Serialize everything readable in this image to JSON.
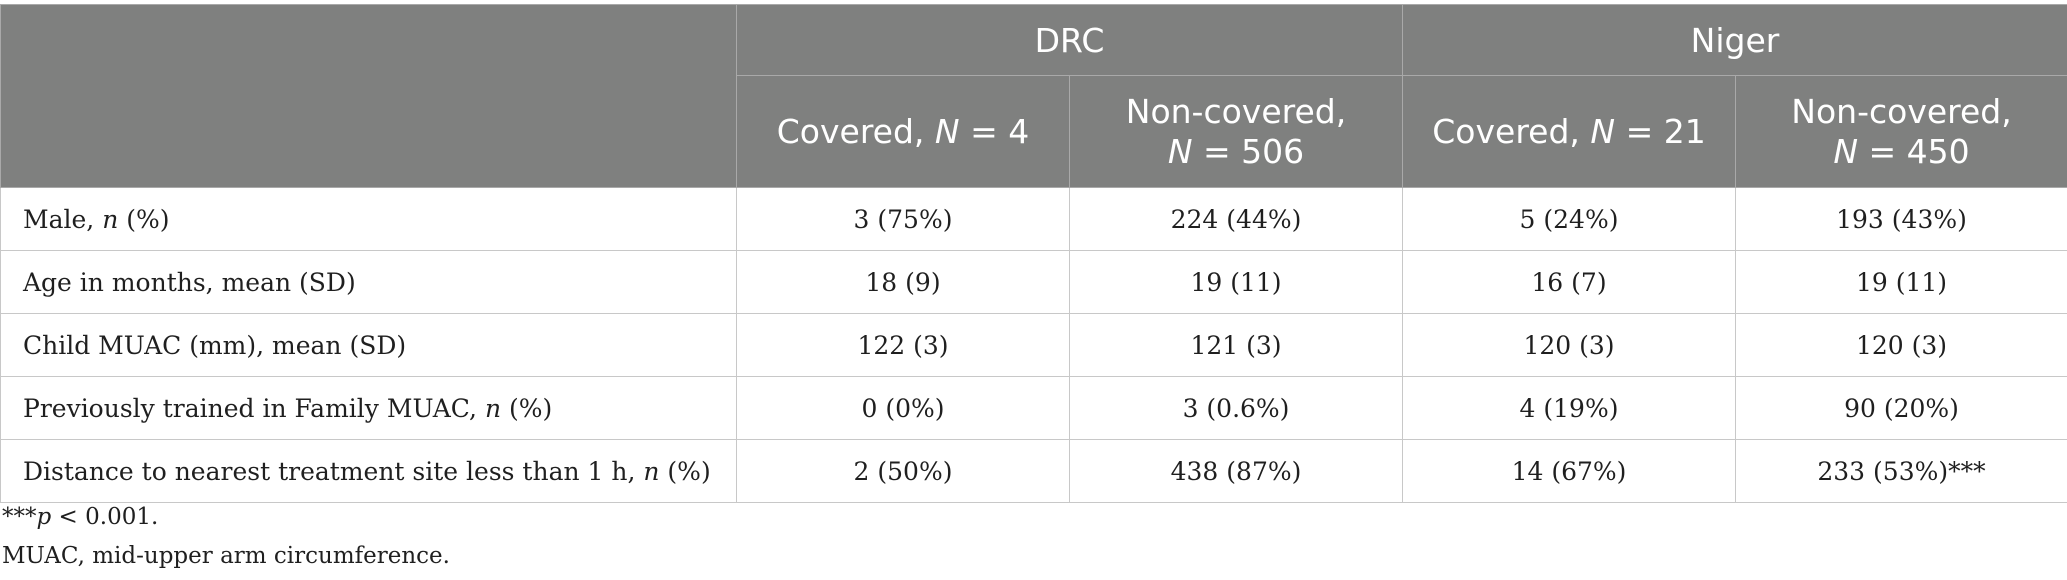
{
  "groups": [
    "DRC",
    "Niger"
  ],
  "subheaders": [
    {
      "pre": "Covered, ",
      "n_label": "N",
      "post": " = 4"
    },
    {
      "pre": "Non-covered,",
      "n_label": "N",
      "post": " = 506"
    },
    {
      "pre": "Covered, ",
      "n_label": "N",
      "post": " = 21"
    },
    {
      "pre": "Non-covered,",
      "n_label": "N",
      "post": " = 450"
    }
  ],
  "rows": [
    {
      "label_pre": "Male, ",
      "label_it": "n",
      "label_post": " (%)",
      "cells": [
        "3 (75%)",
        "224 (44%)",
        "5 (24%)",
        "193 (43%)"
      ]
    },
    {
      "label_pre": "Age in months, mean (SD)",
      "label_it": "",
      "label_post": "",
      "cells": [
        "18 (9)",
        "19 (11)",
        "16 (7)",
        "19 (11)"
      ]
    },
    {
      "label_pre": "Child MUAC (mm), mean (SD)",
      "label_it": "",
      "label_post": "",
      "cells": [
        "122 (3)",
        "121 (3)",
        "120 (3)",
        "120 (3)"
      ]
    },
    {
      "label_pre": "Previously trained in Family MUAC, ",
      "label_it": "n",
      "label_post": " (%)",
      "cells": [
        "0 (0%)",
        "3 (0.6%)",
        "4 (19%)",
        "90 (20%)"
      ]
    },
    {
      "label_pre": "Distance to nearest treatment site less than 1 h, ",
      "label_it": "n",
      "label_post": " (%)",
      "cells": [
        "2 (50%)",
        "438 (87%)",
        "14 (67%)",
        "233 (53%)***"
      ]
    }
  ],
  "footnotes": {
    "sig_marker": "***",
    "sig_p": "p",
    "sig_rest": " < 0.001.",
    "abbrev": "MUAC, mid-upper arm circumference."
  }
}
